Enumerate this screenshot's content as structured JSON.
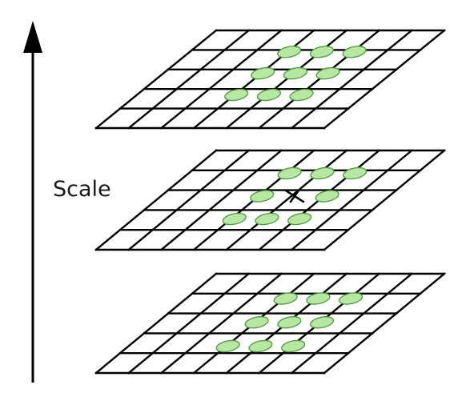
{
  "diagram": {
    "axis_label": "Scale",
    "layers": [
      {
        "name": "upper",
        "grid_cols": 7,
        "grid_rows": 5,
        "has_candidate": false
      },
      {
        "name": "middle",
        "grid_cols": 7,
        "grid_rows": 5,
        "has_candidate": true
      },
      {
        "name": "lower",
        "grid_cols": 7,
        "grid_rows": 5,
        "has_candidate": false
      }
    ],
    "neighbor_points_per_layer": 8,
    "colors": {
      "grid": "#000000",
      "point_fill": "#b8e6a3",
      "point_stroke": "#4a9a3c",
      "axis": "#000000"
    }
  }
}
